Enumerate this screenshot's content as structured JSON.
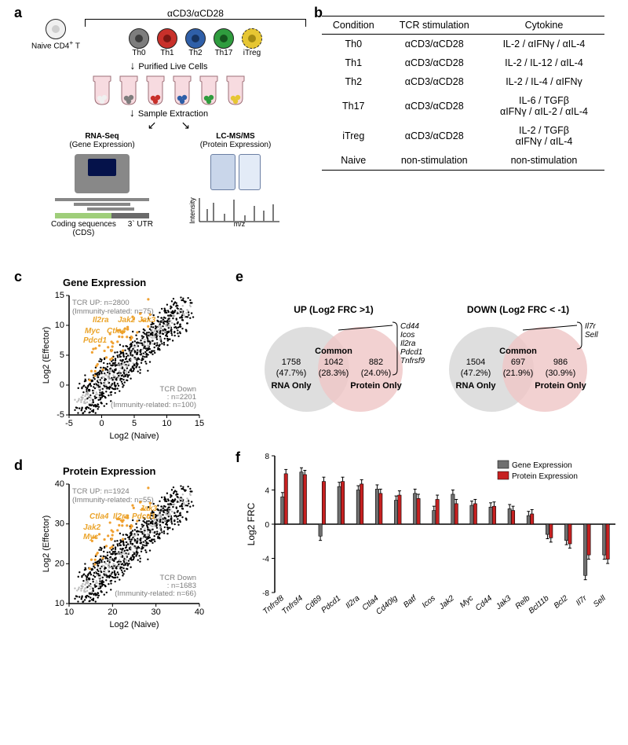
{
  "panelA": {
    "label": "a",
    "header_bracket": "αCD3/αCD28",
    "cells": [
      {
        "name": "Naive CD4⁺ T",
        "fill": "#f0f0f0",
        "nuc": "#cfcfcf",
        "dashed": false
      },
      {
        "name": "Th0",
        "fill": "#7d7d7d",
        "nuc": "#3d3d3d",
        "dashed": false
      },
      {
        "name": "Th1",
        "fill": "#c8302a",
        "nuc": "#7b1612",
        "dashed": false
      },
      {
        "name": "Th2",
        "fill": "#2f5fa8",
        "nuc": "#16335f",
        "dashed": false
      },
      {
        "name": "Th17",
        "fill": "#2f9c3e",
        "nuc": "#14541d",
        "dashed": false
      },
      {
        "name": "iTreg",
        "fill": "#e6c633",
        "nuc": "#a28a13",
        "dashed": true
      }
    ],
    "step1": "Purified Live Cells",
    "step2": "Sample Extraction",
    "left": {
      "title": "RNA-Seq",
      "sub": "(Gene Expression)",
      "seq1": "Coding sequences",
      "seq2": "(CDS)",
      "seq3": "3` UTR",
      "cds": "#9fce7a",
      "utr": "#6a6a6a"
    },
    "right": {
      "title": "LC-MS/MS",
      "sub": "(Protein Expression)",
      "xl": "m/z",
      "yl": "Intensity"
    }
  },
  "panelB": {
    "label": "b",
    "headers": [
      "Condition",
      "TCR stimulation",
      "Cytokine"
    ],
    "rows": [
      [
        "Th0",
        "αCD3/αCD28",
        "IL-2 / αIFNγ / αIL-4"
      ],
      [
        "Th1",
        "αCD3/αCD28",
        "IL-2 / IL-12 / αIL-4"
      ],
      [
        "Th2",
        "αCD3/αCD28",
        "IL-2 / IL-4 / αIFNγ"
      ],
      [
        "Th17",
        "αCD3/αCD28",
        "IL-6 / TGFβ\nαIFNγ / αIL-2 / αIL-4"
      ],
      [
        "iTreg",
        "αCD3/αCD28",
        "IL-2 / TGFβ\nαIFNγ / αIL-4"
      ],
      [
        "Naive",
        "non-stimulation",
        "non-stimulation"
      ]
    ]
  },
  "scatter_common": {
    "bg": "#ffffff",
    "axis": "#000000",
    "pt_black": "#000000",
    "pt_grey": "#bdbdbd",
    "pt_orange": "#f0a030",
    "genes": [
      "Il2ra",
      "Jak2",
      "Jak3",
      "Myc",
      "Ctla4",
      "Pdcd1"
    ]
  },
  "panelC": {
    "label": "c",
    "title": "Gene Expression",
    "xlab": "Log2 (Naive)",
    "ylab": "Log2 (Effector)",
    "xlim": [
      -5,
      15
    ],
    "ylim": [
      -5,
      15
    ],
    "ticks": [
      -5,
      0,
      5,
      10,
      15
    ],
    "up": "TCR UP: n=2800",
    "up2": "(Immunity-related: n=75)",
    "dn": "TCR Down",
    "dn2": ": n=2201",
    "dn3": "(Immunity-related: n=100)"
  },
  "panelD": {
    "label": "d",
    "title": "Protein Expression",
    "xlab": "Log2 (Naive)",
    "ylab": "Log2 (Effector)",
    "xlim": [
      10,
      40
    ],
    "ylim": [
      10,
      40
    ],
    "ticks": [
      10,
      20,
      30,
      40
    ],
    "up": "TCR UP: n=1924",
    "up2": "(Immunity-related: n=55)",
    "dn": "TCR Down",
    "dn2": ": n=1683",
    "dn3": "(Immunity-related: n=66)"
  },
  "panelE": {
    "label": "e",
    "up": {
      "title": "UP (Log2 FRC >1)",
      "rna_only": "1758",
      "rna_pct": "(47.7%)",
      "common": "1042",
      "common_pct": "(28.3%)",
      "prot_only": "882",
      "prot_pct": "(24.0%)",
      "callouts": [
        "Cd44",
        "Icos",
        "Il2ra",
        "Pdcd1",
        "Tnfrsf9"
      ]
    },
    "down": {
      "title": "DOWN (Log2 FRC < -1)",
      "rna_only": "1504",
      "rna_pct": "(47.2%)",
      "common": "697",
      "common_pct": "(21.9%)",
      "prot_only": "986",
      "prot_pct": "(30.9%)",
      "callouts": [
        "Il7r",
        "Sell"
      ]
    },
    "labels": {
      "common": "Common",
      "rna": "RNA Only",
      "prot": "Protein Only"
    },
    "colors": {
      "rna": "#dcdcdc",
      "prot": "#efc6c6",
      "overlap": "#d7b9b9"
    }
  },
  "panelF": {
    "label": "f",
    "ylab": "Log2 FRC",
    "ylim": [
      -8,
      8
    ],
    "yticks": [
      -8,
      -4,
      0,
      4,
      8
    ],
    "legend": [
      {
        "name": "Gene Expression",
        "color": "#6f6f6f"
      },
      {
        "name": "Protein Expression",
        "color": "#c62121"
      }
    ],
    "genes": [
      "Tnfrsf8",
      "Tnfrsf4",
      "Cd69",
      "Pdcd1",
      "Il2ra",
      "Ctla4",
      "Cd40lg",
      "Batf",
      "Icos",
      "Jak2",
      "Myc",
      "Cd44",
      "Jak3",
      "Relb",
      "Bcl11b",
      "Bcl2",
      "Il7r",
      "Sell"
    ],
    "gene_vals": [
      3.2,
      6.1,
      -1.4,
      4.4,
      4.0,
      4.1,
      2.8,
      3.6,
      1.6,
      3.5,
      2.2,
      2.0,
      1.8,
      1.0,
      -1.2,
      -1.9,
      -6.0,
      -3.6
    ],
    "prot_vals": [
      5.9,
      5.8,
      5.0,
      5.0,
      4.7,
      3.6,
      3.4,
      3.0,
      2.9,
      2.4,
      2.4,
      2.1,
      1.6,
      1.2,
      -1.6,
      -2.3,
      -3.6,
      -4.1
    ],
    "err": 0.5,
    "bar_w": 0.36
  }
}
